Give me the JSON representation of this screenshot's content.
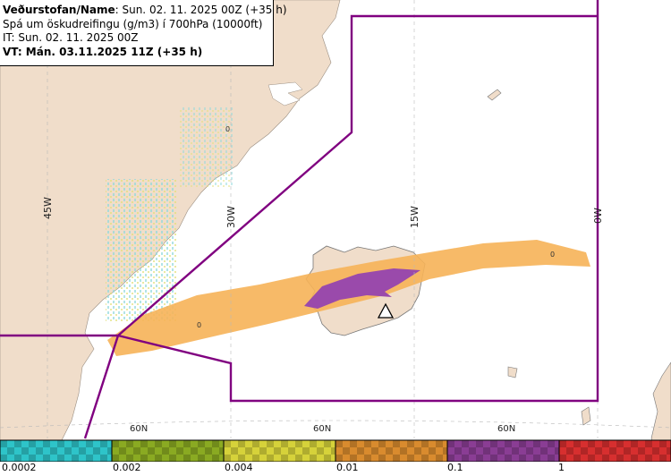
{
  "header": {
    "line1_org": "Veðurstofan/Name",
    "line1_rest": ": Sun. 02. 11. 2025 00Z (+35 h)",
    "line2": "Spá um öskudreifingu (g/m3) í 700hPa (10000ft)",
    "line3": "IT: Sun. 02. 11. 2025 00Z",
    "line4": "VT: Mán. 03.11.2025 11Z (+35 h)"
  },
  "grid_labels": {
    "lon": [
      "45W",
      "30W",
      "15W",
      "0W"
    ],
    "lat": [
      "60N",
      "60N",
      "60N"
    ]
  },
  "contour_labels": [
    "0",
    "0",
    "0"
  ],
  "legend": {
    "labels": [
      "0.0002",
      "0.002",
      "0.004",
      "0.01",
      "0.1",
      "1"
    ],
    "colors": [
      "#2ec4c9",
      "#8aaa22",
      "#d6d23a",
      "#d98b2e",
      "#8a3d94",
      "#d72f2f"
    ]
  },
  "colors": {
    "land": "#f0ddca",
    "sea": "#ffffff",
    "boundary": "#800080",
    "plume_orange": "#f6b358",
    "plume_purple": "#9a4aab"
  },
  "volcano_icon": "volcano-triangle-icon"
}
